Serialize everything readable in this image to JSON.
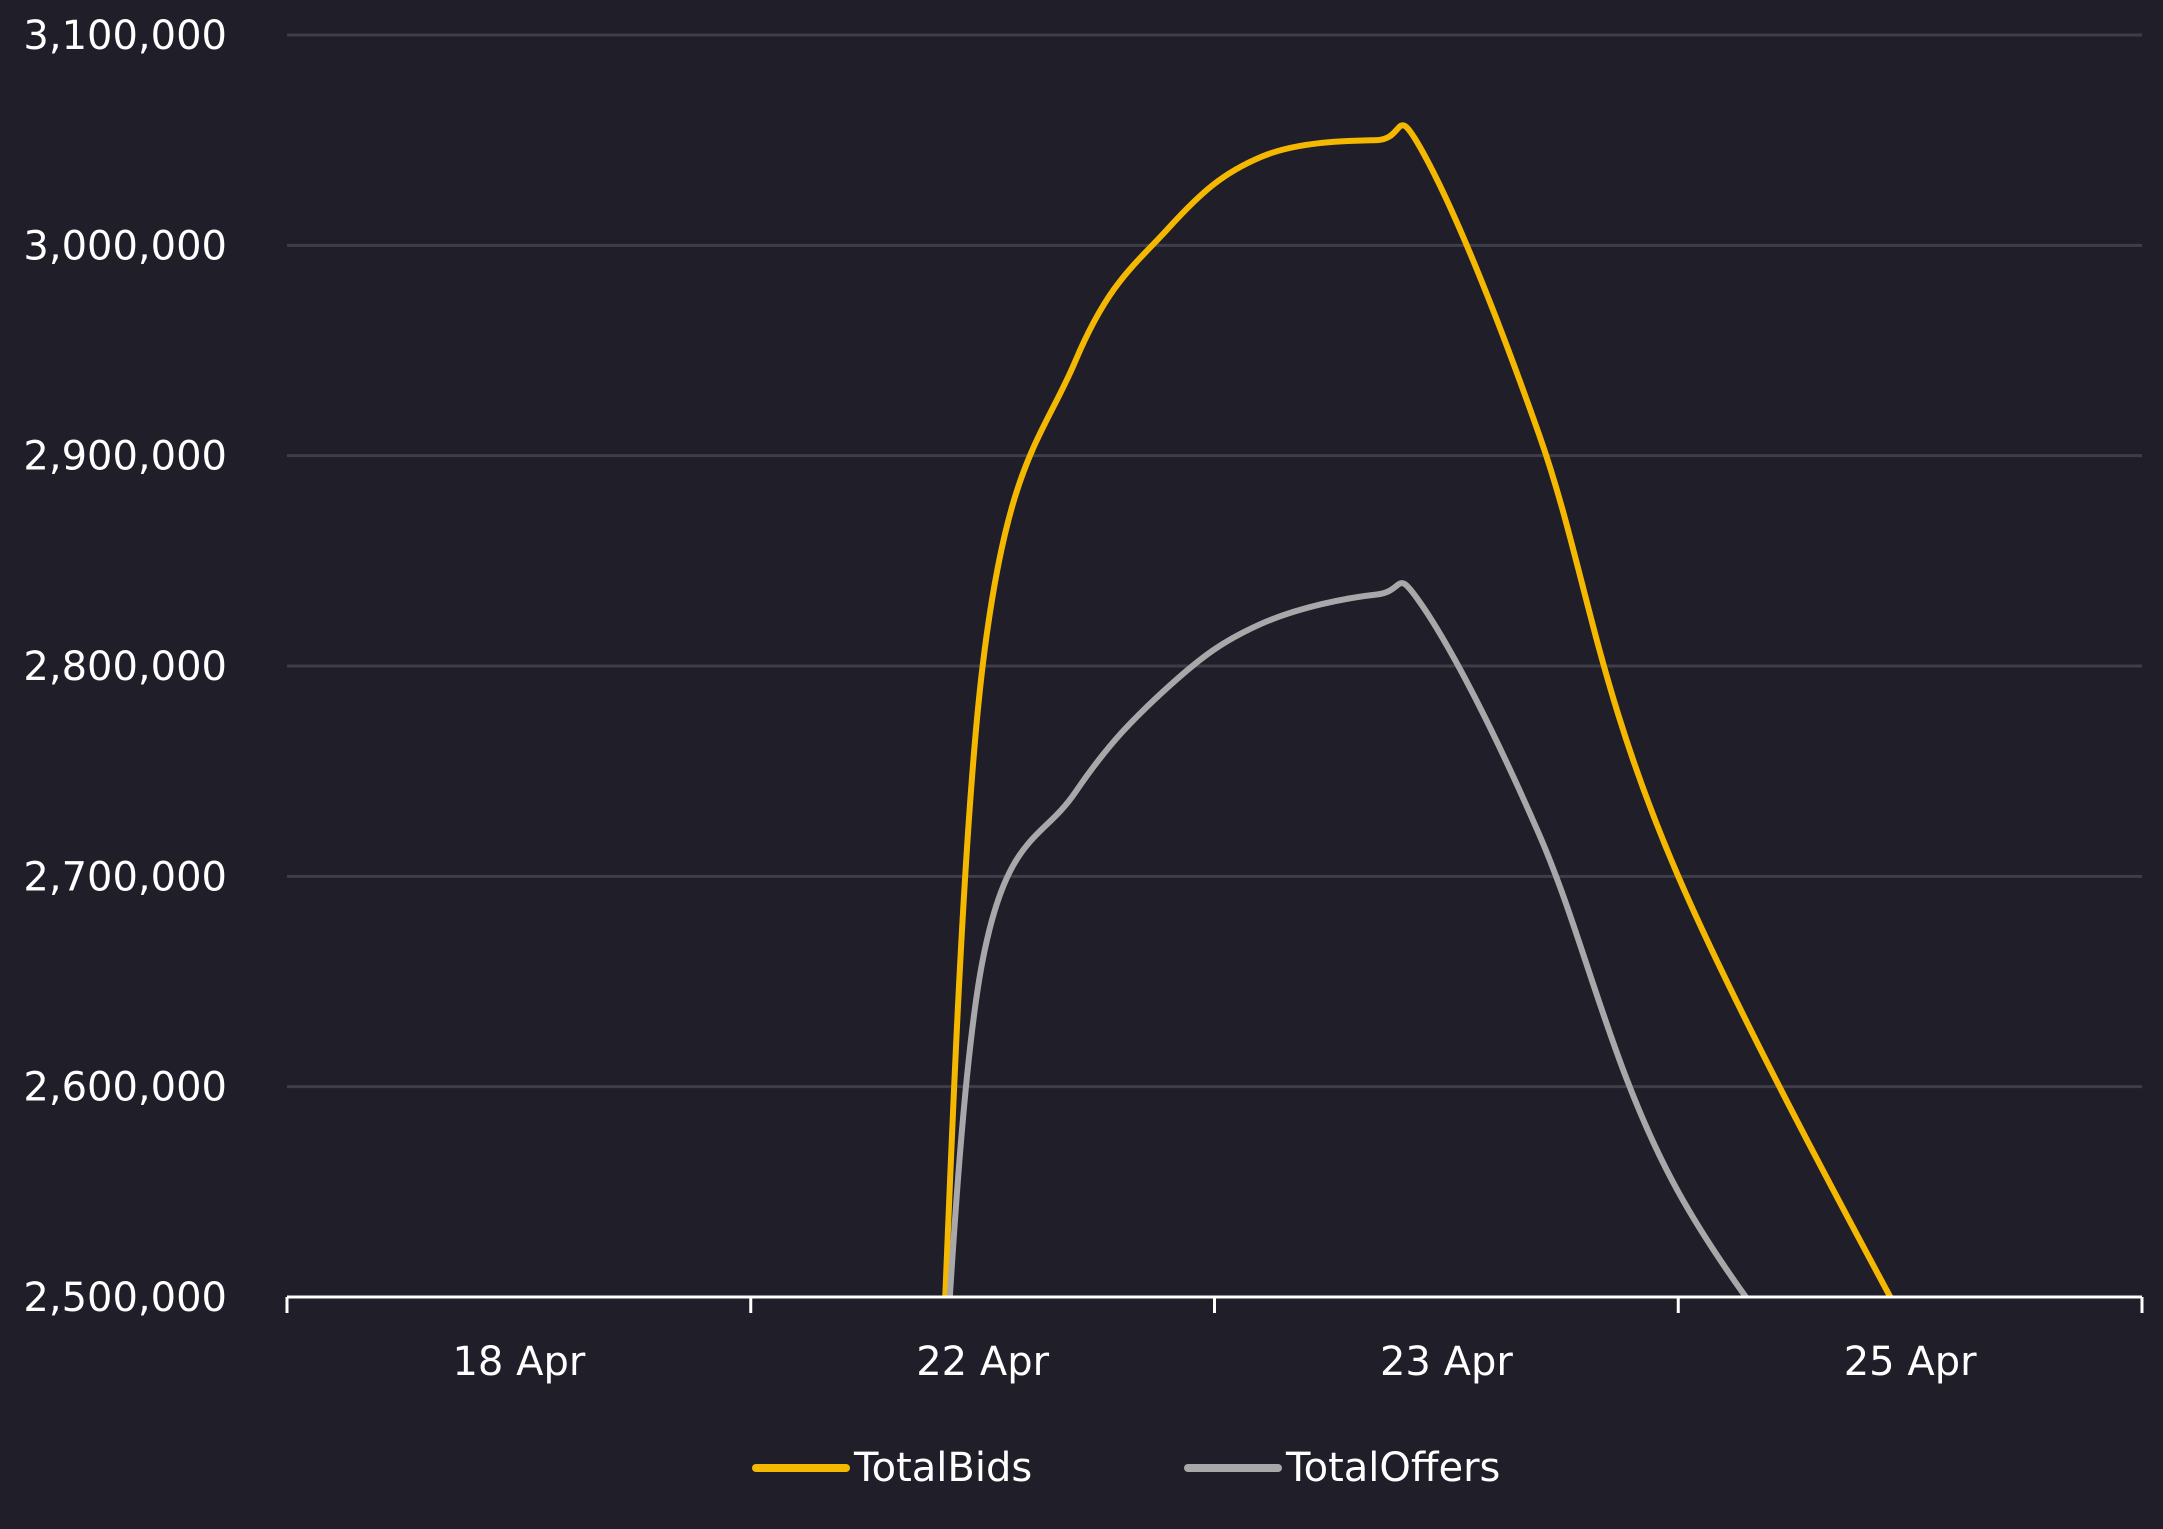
{
  "chart_data": {
    "type": "line",
    "title": "",
    "xlabel": "",
    "ylabel": "",
    "categories": [
      "18 Apr",
      "22 Apr",
      "23 Apr",
      "25 Apr"
    ],
    "ylim": [
      2500000,
      3100000
    ],
    "yticks": [
      "2,500,000",
      "2,600,000",
      "2,700,000",
      "2,800,000",
      "2,900,000",
      "3,000,000",
      "3,100,000"
    ],
    "ytick_values": [
      2500000,
      2600000,
      2700000,
      2800000,
      2900000,
      3000000,
      3100000
    ],
    "grid": true,
    "legend_position": "bottom",
    "series": [
      {
        "name": "TotalBids",
        "color": "#f5b800",
        "points": [
          [
            0.9,
            2400000
          ],
          [
            1.0,
            2800000
          ],
          [
            1.2,
            2945000
          ],
          [
            1.4,
            3008000
          ],
          [
            1.6,
            3042000
          ],
          [
            1.85,
            3050000
          ],
          [
            1.95,
            3044000
          ],
          [
            2.2,
            2910000
          ],
          [
            2.5,
            2700000
          ],
          [
            3.2,
            2400000
          ]
        ]
      },
      {
        "name": "TotalOffers",
        "color": "#a8a8ab",
        "points": [
          [
            0.9,
            2400000
          ],
          [
            1.0,
            2660000
          ],
          [
            1.2,
            2740000
          ],
          [
            1.4,
            2790000
          ],
          [
            1.6,
            2820000
          ],
          [
            1.85,
            2834000
          ],
          [
            1.95,
            2828000
          ],
          [
            2.2,
            2720000
          ],
          [
            2.5,
            2550000
          ],
          [
            3.0,
            2400000
          ]
        ]
      }
    ]
  }
}
